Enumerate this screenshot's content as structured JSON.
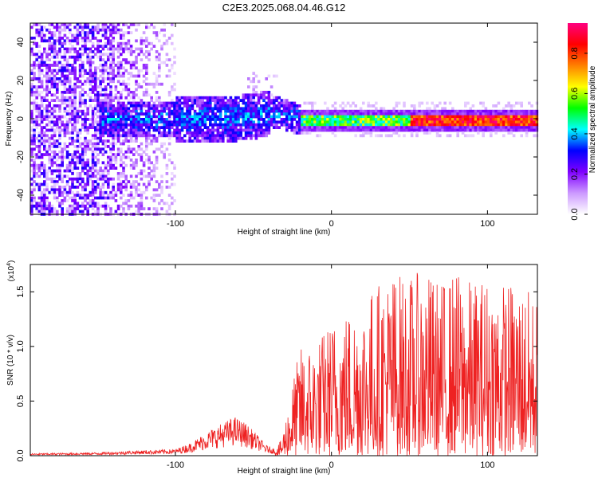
{
  "title": "C2E3.2025.068.04.46.G12",
  "chart_data": [
    {
      "type": "heatmap",
      "xlabel": "Height of straight line (km)",
      "ylabel": "Frequency (Hz)",
      "xlim": [
        -193,
        132
      ],
      "ylim": [
        -50,
        50
      ],
      "xticks": [
        -100,
        0,
        100
      ],
      "yticks": [
        -40,
        -20,
        0,
        20,
        40
      ],
      "colorbar": {
        "label": "Normalized spectral amplitude",
        "range": [
          0,
          0.95
        ],
        "ticks": [
          "0.0",
          "0.2",
          "0.4",
          "0.6",
          "0.8"
        ],
        "tick_values": [
          0,
          0.2,
          0.4,
          0.6,
          0.8
        ],
        "colors": [
          "#ffffff",
          "#cc99ff",
          "#7f00ff",
          "#0000ff",
          "#00ffff",
          "#00ff00",
          "#ffff00",
          "#ff8000",
          "#ff0000",
          "#ff0080"
        ]
      },
      "features": {
        "noise_region_x": [
          -193,
          -100
        ],
        "carrier_frequency_hz": 0,
        "carrier_drift": {
          "x": [
            -150,
            -60,
            -35,
            -20,
            0,
            132
          ],
          "y": [
            0,
            1,
            4,
            0,
            0,
            0
          ]
        }
      }
    },
    {
      "type": "line",
      "xlabel": "Height of straight line (km)",
      "ylabel": "SNR (10 * v/v)",
      "scale_label": "(x10",
      "scale_exponent": "4",
      "xlim": [
        -193,
        132
      ],
      "ylim": [
        0,
        1.75
      ],
      "xticks": [
        -100,
        0,
        100
      ],
      "yticks": [
        "0.0",
        "0.5",
        "1.0",
        "1.5"
      ],
      "ytick_values": [
        0,
        0.5,
        1.0,
        1.5
      ],
      "series": [
        {
          "color": "#ee2222",
          "envelope": {
            "x": [
              -193,
              -150,
              -120,
              -100,
              -90,
              -80,
              -70,
              -62,
              -55,
              -48,
              -42,
              -36,
              -32,
              -28,
              -24,
              -20,
              -10,
              0,
              10,
              20,
              30,
              40,
              50,
              60,
              70,
              80,
              90,
              100,
              110,
              120,
              132
            ],
            "y": [
              0.02,
              0.03,
              0.05,
              0.06,
              0.12,
              0.22,
              0.3,
              0.36,
              0.3,
              0.2,
              0.1,
              0.06,
              0.15,
              0.45,
              0.75,
              1.0,
              1.05,
              1.25,
              1.35,
              1.45,
              1.6,
              1.7,
              1.65,
              1.7,
              1.6,
              1.7,
              1.6,
              1.65,
              1.6,
              1.6,
              1.45
            ]
          }
        }
      ]
    }
  ]
}
